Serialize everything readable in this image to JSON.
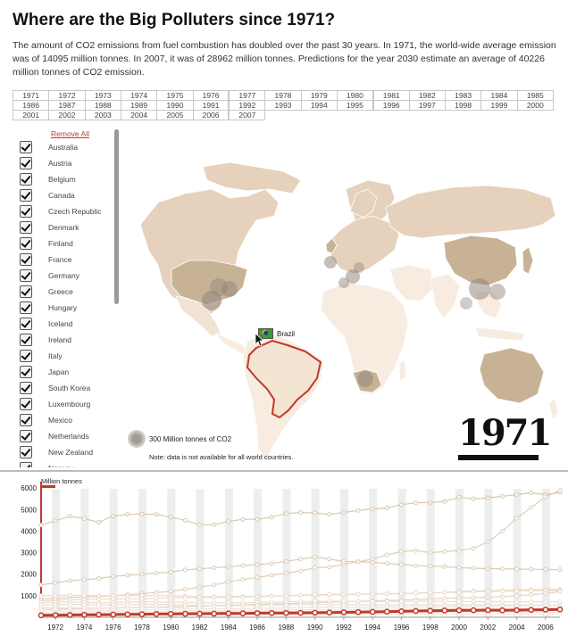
{
  "page": {
    "title": "Where are the Big Polluters since 1971?",
    "intro": "The amount of CO2 emissions from fuel combustion has doubled over the past 30 years. In 1971, the world-wide average emission was of 14095 million tonnes. In 2007, it was of 28962 million tonnes. Predictions for the year 2030 estimate an average of 40226 million tonnes of CO2 emission."
  },
  "year_grid": {
    "rows": [
      [
        "1971",
        "1972",
        "1973",
        "1974",
        "1975",
        "1976",
        "1977",
        "1978",
        "1979",
        "1980",
        "1981",
        "1982",
        "1983",
        "1984",
        "1985"
      ],
      [
        "1986",
        "1987",
        "1988",
        "1989",
        "1990",
        "1991",
        "1992",
        "1993",
        "1994",
        "1995",
        "1996",
        "1997",
        "1998",
        "1999",
        "2000"
      ],
      [
        "2001",
        "2002",
        "2003",
        "2004",
        "2005",
        "2006",
        "2007"
      ]
    ]
  },
  "sidebar": {
    "remove_all": "Remove All",
    "countries": [
      "Australia",
      "Austria",
      "Belgium",
      "Canada",
      "Czech Republic",
      "Denmark",
      "Finland",
      "France",
      "Germany",
      "Greece",
      "Hungary",
      "Iceland",
      "Ireland",
      "Italy",
      "Japan",
      "South Korea",
      "Luxembourg",
      "Mexico",
      "Netherlands",
      "New Zealand",
      "Norway"
    ]
  },
  "map": {
    "selected_country": "Brazil",
    "year": "1971",
    "legend": "300 Million tonnes of CO2",
    "note": "Note: data is not available for all world countries.",
    "colors": {
      "land_light": "#f8ece0",
      "land_mid": "#e6d2bc",
      "land_dark": "#c8b296",
      "border": "#ffffff",
      "highlight": "#c0392b",
      "bubble": "#8c8076"
    }
  },
  "chart_data": {
    "type": "line",
    "ylabel": "Million tonnes",
    "ylim": [
      0,
      6300
    ],
    "yticks": [
      1000,
      2000,
      3000,
      4000,
      5000,
      6000
    ],
    "x": [
      1971,
      1972,
      1973,
      1974,
      1975,
      1976,
      1977,
      1978,
      1979,
      1980,
      1981,
      1982,
      1983,
      1984,
      1985,
      1986,
      1987,
      1988,
      1989,
      1990,
      1991,
      1992,
      1993,
      1994,
      1995,
      1996,
      1997,
      1998,
      1999,
      2000,
      2001,
      2002,
      2003,
      2004,
      2005,
      2006,
      2007
    ],
    "xticks": [
      "1972",
      "1974",
      "1976",
      "1978",
      "1980",
      "1982",
      "1984",
      "1986",
      "1988",
      "1990",
      "1992",
      "1994",
      "1996",
      "1998",
      "2000",
      "2002",
      "2004",
      "2006"
    ],
    "highlight_year": 1971,
    "series": [
      {
        "color": "#d9c8b2",
        "values": [
          4280,
          4480,
          4700,
          4580,
          4420,
          4700,
          4780,
          4800,
          4780,
          4650,
          4500,
          4300,
          4300,
          4450,
          4550,
          4550,
          4650,
          4820,
          4860,
          4850,
          4780,
          4870,
          4960,
          5030,
          5080,
          5230,
          5320,
          5330,
          5380,
          5580,
          5500,
          5550,
          5620,
          5700,
          5780,
          5700,
          5800
        ]
      },
      {
        "color": "#e0cfba",
        "values": [
          850,
          880,
          920,
          940,
          960,
          1000,
          1050,
          1100,
          1150,
          1200,
          1300,
          1400,
          1500,
          1650,
          1750,
          1850,
          1950,
          2050,
          2150,
          2300,
          2330,
          2460,
          2580,
          2700,
          2900,
          3050,
          3100,
          3000,
          3050,
          3100,
          3200,
          3500,
          4000,
          4600,
          5100,
          5600,
          5900
        ]
      },
      {
        "color": "#dccbb6",
        "values": [
          1500,
          1600,
          1700,
          1750,
          1800,
          1900,
          1950,
          2000,
          2050,
          2100,
          2200,
          2250,
          2300,
          2350,
          2400,
          2450,
          2500,
          2600,
          2700,
          2800,
          2700,
          2600,
          2580,
          2550,
          2500,
          2450,
          2400,
          2380,
          2350,
          2300,
          2280,
          2260,
          2250,
          2240,
          2230,
          2220,
          2210
        ]
      },
      {
        "color": "#eadbcb",
        "values": [
          1000,
          1010,
          1020,
          1010,
          1000,
          1000,
          1000,
          1010,
          1010,
          1000,
          980,
          960,
          950,
          960,
          970,
          980,
          990,
          1000,
          1020,
          1030,
          1040,
          1050,
          1060,
          1080,
          1100,
          1100,
          1120,
          1130,
          1150,
          1200,
          1220,
          1230,
          1250,
          1270,
          1280,
          1290,
          1300
        ]
      },
      {
        "color": "#eadbcb",
        "values": [
          760,
          790,
          820,
          830,
          840,
          850,
          850,
          860,
          880,
          900,
          910,
          920,
          930,
          930,
          940,
          960,
          980,
          1000,
          1020,
          1050,
          1060,
          1060,
          1070,
          1080,
          1090,
          1100,
          1120,
          1140,
          1150,
          1160,
          1180,
          1200,
          1210,
          1220,
          1230,
          1240,
          1250
        ]
      },
      {
        "color": "#e6d4c0",
        "values": [
          350,
          380,
          400,
          410,
          420,
          430,
          450,
          470,
          480,
          490,
          500,
          520,
          540,
          560,
          580,
          600,
          620,
          640,
          650,
          670,
          700,
          720,
          740,
          760,
          780,
          800,
          820,
          850,
          870,
          890,
          910,
          930,
          960,
          1000,
          1050,
          1100,
          1200
        ]
      },
      {
        "color": "#ecdfd1",
        "values": [
          690,
          700,
          710,
          700,
          680,
          690,
          700,
          710,
          710,
          700,
          690,
          680,
          670,
          670,
          680,
          690,
          700,
          720,
          730,
          740,
          740,
          740,
          730,
          730,
          730,
          740,
          740,
          740,
          730,
          730,
          730,
          720,
          720,
          720,
          720,
          720,
          720
        ]
      },
      {
        "color": "#e9dccf",
        "values": [
          580,
          590,
          600,
          590,
          570,
          580,
          590,
          600,
          600,
          590,
          570,
          550,
          540,
          540,
          550,
          560,
          570,
          580,
          590,
          590,
          590,
          580,
          570,
          560,
          560,
          570,
          570,
          570,
          570,
          570,
          570,
          570,
          570,
          570,
          560,
          560,
          560
        ]
      },
      {
        "color": "#efe3d6",
        "values": [
          430,
          440,
          450,
          440,
          420,
          430,
          440,
          450,
          450,
          440,
          420,
          400,
          390,
          390,
          400,
          410,
          420,
          430,
          440,
          450,
          450,
          450,
          450,
          450,
          460,
          460,
          470,
          480,
          480,
          490,
          500,
          500,
          510,
          520,
          530,
          540,
          540
        ]
      },
      {
        "color": "#f0e6da",
        "values": [
          330,
          340,
          350,
          340,
          320,
          330,
          340,
          350,
          350,
          340,
          320,
          310,
          300,
          300,
          310,
          320,
          330,
          340,
          350,
          350,
          350,
          350,
          350,
          360,
          360,
          370,
          370,
          380,
          380,
          390,
          390,
          400,
          400,
          410,
          410,
          410,
          420
        ]
      },
      {
        "color": "#f2e8de",
        "values": [
          250,
          255,
          260,
          258,
          250,
          252,
          256,
          258,
          260,
          256,
          250,
          246,
          244,
          246,
          250,
          254,
          258,
          262,
          266,
          270,
          272,
          274,
          276,
          278,
          280,
          282,
          284,
          286,
          288,
          290,
          292,
          294,
          296,
          298,
          300,
          302,
          304
        ]
      },
      {
        "color": "#f2e8de",
        "values": [
          180,
          184,
          188,
          186,
          180,
          182,
          186,
          188,
          190,
          188,
          184,
          180,
          178,
          180,
          184,
          188,
          192,
          196,
          200,
          204,
          206,
          208,
          210,
          212,
          214,
          216,
          218,
          220,
          222,
          224,
          226,
          228,
          230,
          232,
          234,
          236,
          238
        ]
      },
      {
        "color": "#f4ebe2",
        "values": [
          120,
          122,
          124,
          123,
          120,
          121,
          123,
          124,
          125,
          124,
          122,
          120,
          119,
          120,
          122,
          124,
          126,
          128,
          130,
          132,
          133,
          134,
          135,
          136,
          137,
          138,
          139,
          140,
          141,
          142,
          143,
          144,
          145,
          146,
          147,
          148,
          149
        ]
      },
      {
        "color": "#c0392b",
        "values": [
          90,
          96,
          105,
          112,
          118,
          126,
          132,
          140,
          150,
          158,
          160,
          165,
          168,
          175,
          180,
          190,
          195,
          200,
          205,
          210,
          220,
          230,
          240,
          250,
          260,
          275,
          290,
          300,
          310,
          320,
          325,
          330,
          320,
          330,
          340,
          350,
          360
        ]
      }
    ]
  }
}
